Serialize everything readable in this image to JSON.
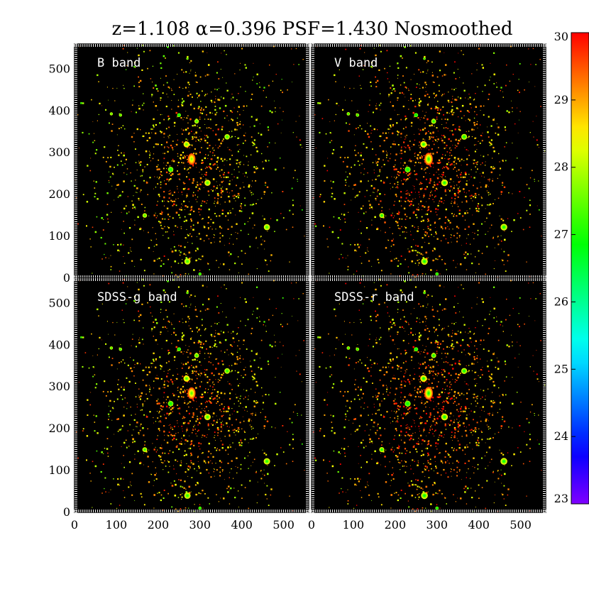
{
  "chart_data": {
    "type": "heatmap",
    "title": "z=1.108  α=0.396  PSF=1.430  Nosmoothed",
    "xlabel": "",
    "ylabel": "",
    "xlim": [
      0,
      560
    ],
    "ylim": [
      0,
      560
    ],
    "x_ticks": [
      0,
      100,
      200,
      300,
      400,
      500
    ],
    "y_ticks": [
      0,
      100,
      200,
      300,
      400,
      500
    ],
    "grid": false,
    "colormap": "rainbow",
    "colorbar": {
      "range": [
        23,
        30
      ],
      "ticks": [
        23,
        24,
        25,
        26,
        27,
        28,
        29,
        30
      ],
      "placement": "right"
    },
    "panels": [
      {
        "label": "B band",
        "brightness": 0.72
      },
      {
        "label": "V band",
        "brightness": 1.0
      },
      {
        "label": "SDSS-g band",
        "brightness": 0.85
      },
      {
        "label": "SDSS-r band",
        "brightness": 1.05
      }
    ],
    "sources": [
      {
        "x": 280,
        "y": 285,
        "peak": 29.5,
        "sigma": 10
      },
      {
        "x": 268,
        "y": 320,
        "peak": 28.5,
        "sigma": 8
      },
      {
        "x": 318,
        "y": 228,
        "peak": 28.2,
        "sigma": 8
      },
      {
        "x": 292,
        "y": 375,
        "peak": 27.8,
        "sigma": 6
      },
      {
        "x": 365,
        "y": 338,
        "peak": 27.8,
        "sigma": 7
      },
      {
        "x": 460,
        "y": 122,
        "peak": 28.0,
        "sigma": 8
      },
      {
        "x": 168,
        "y": 150,
        "peak": 27.9,
        "sigma": 6
      },
      {
        "x": 270,
        "y": 40,
        "peak": 28.0,
        "sigma": 8
      },
      {
        "x": 88,
        "y": 393,
        "peak": 27.8,
        "sigma": 4
      },
      {
        "x": 110,
        "y": 390,
        "peak": 27.6,
        "sigma": 4
      },
      {
        "x": 270,
        "y": 525,
        "peak": 27.5,
        "sigma": 3
      },
      {
        "x": 230,
        "y": 260,
        "peak": 27.2,
        "sigma": 7
      },
      {
        "x": 250,
        "y": 390,
        "peak": 27.0,
        "sigma": 5
      },
      {
        "x": 300,
        "y": 10,
        "peak": 27.0,
        "sigma": 4
      }
    ],
    "diffuse": {
      "center": [
        280,
        260
      ],
      "sigma_x": 110,
      "sigma_y": 140,
      "knot_count": 1300
    }
  }
}
